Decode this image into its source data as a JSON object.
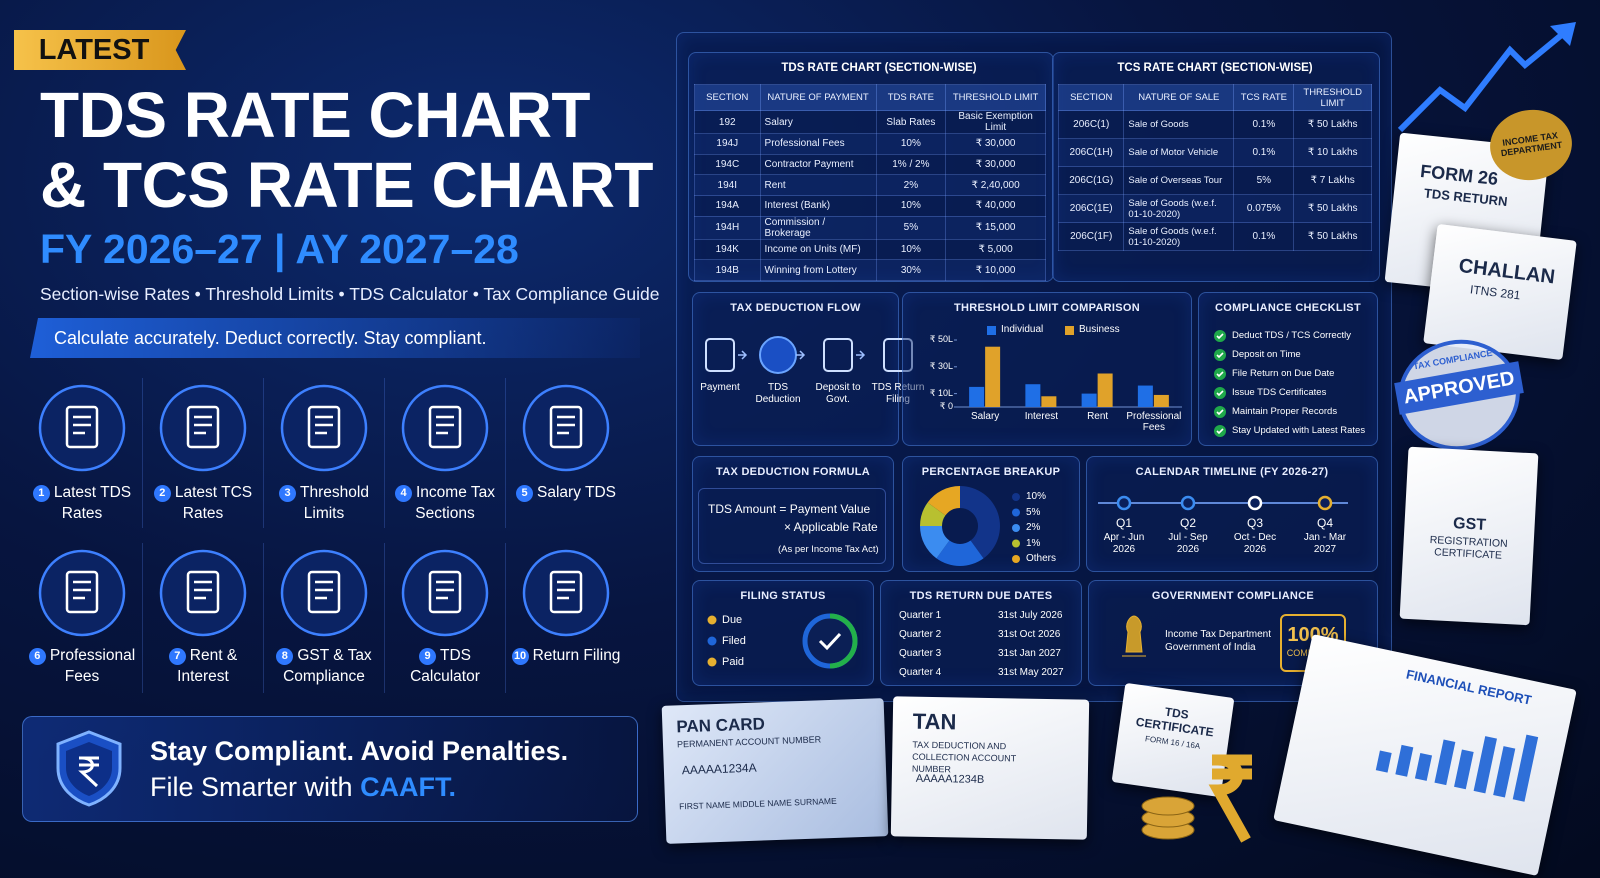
{
  "header": {
    "badge": "LATEST",
    "title_line1": "TDS RATE CHART",
    "title_line2": "& TCS RATE CHART",
    "year": "FY 2026–27 | AY 2027–28",
    "subtitle": "Section-wise Rates • Threshold Limits • TDS Calculator • Tax Compliance Guide",
    "tagline": "Calculate accurately. Deduct correctly. Stay compliant."
  },
  "features": [
    {
      "number": 1,
      "label": "Latest TDS Rates"
    },
    {
      "number": 2,
      "label": "Latest TCS Rates"
    },
    {
      "number": 3,
      "label": "Threshold Limits"
    },
    {
      "number": 4,
      "label": "Income Tax Sections"
    },
    {
      "number": 5,
      "label": "Salary TDS"
    },
    {
      "number": 6,
      "label": "Professional Fees"
    },
    {
      "number": 7,
      "label": "Rent & Interest"
    },
    {
      "number": 8,
      "label": "GST & Tax Compliance"
    },
    {
      "number": 9,
      "label": "TDS Calculator"
    },
    {
      "number": 10,
      "label": "Return Filing"
    }
  ],
  "footer": {
    "line1": "Stay Compliant. Avoid Penalties.",
    "line2": "File Smarter with",
    "brand": "CAAFT."
  },
  "tds_table": {
    "title": "TDS RATE CHART (SECTION-WISE)",
    "columns": [
      "SECTION",
      "NATURE OF PAYMENT",
      "TDS RATE",
      "THRESHOLD LIMIT"
    ],
    "rows": [
      [
        "192",
        "Salary",
        "Slab Rates",
        "Basic Exemption Limit"
      ],
      [
        "194J",
        "Professional Fees",
        "10%",
        "₹ 30,000"
      ],
      [
        "194C",
        "Contractor Payment",
        "1% / 2%",
        "₹ 30,000"
      ],
      [
        "194I",
        "Rent",
        "2%",
        "₹ 2,40,000"
      ],
      [
        "194A",
        "Interest (Bank)",
        "10%",
        "₹ 40,000"
      ],
      [
        "194H",
        "Commission / Brokerage",
        "5%",
        "₹ 15,000"
      ],
      [
        "194K",
        "Income on Units (MF)",
        "10%",
        "₹ 5,000"
      ],
      [
        "194B",
        "Winning from Lottery",
        "30%",
        "₹ 10,000"
      ]
    ]
  },
  "tcs_table": {
    "title": "TCS RATE CHART (SECTION-WISE)",
    "columns": [
      "SECTION",
      "NATURE OF SALE",
      "TCS RATE",
      "THRESHOLD LIMIT"
    ],
    "rows": [
      [
        "206C(1)",
        "Sale of Goods",
        "0.1%",
        "₹ 50 Lakhs"
      ],
      [
        "206C(1H)",
        "Sale of Motor Vehicle",
        "0.1%",
        "₹ 10 Lakhs"
      ],
      [
        "206C(1G)",
        "Sale of Overseas Tour",
        "5%",
        "₹ 7 Lakhs"
      ],
      [
        "206C(1E)",
        "Sale of Goods (w.e.f. 01-10-2020)",
        "0.075%",
        "₹ 50 Lakhs"
      ],
      [
        "206C(1F)",
        "Sale of Goods (w.e.f. 01-10-2020)",
        "0.1%",
        "₹ 50 Lakhs"
      ]
    ]
  },
  "flow": {
    "title": "TAX DEDUCTION FLOW",
    "steps": [
      "Payment",
      "TDS Deduction",
      "Deposit to Govt.",
      "TDS Return Filing"
    ]
  },
  "chart_data": [
    {
      "type": "bar",
      "title": "THRESHOLD LIMIT COMPARISON",
      "categories": [
        "Salary",
        "Interest",
        "Rent",
        "Professional Fees"
      ],
      "series": [
        {
          "name": "Individual",
          "color": "#1f6fe6",
          "values": [
            15,
            17,
            10,
            16
          ]
        },
        {
          "name": "Business",
          "color": "#e0a22a",
          "values": [
            45,
            8,
            25,
            9
          ]
        }
      ],
      "ylim": [
        0,
        50
      ],
      "yticks": [
        {
          "value": 50,
          "label": "₹ 50L"
        },
        {
          "value": 30,
          "label": "₹ 30L"
        },
        {
          "value": 10,
          "label": "₹ 10L"
        },
        {
          "value": 0,
          "label": "₹ 0"
        }
      ]
    },
    {
      "type": "pie",
      "title": "PERCENTAGE BREAKUP",
      "categories": [
        "10%",
        "5%",
        "2%",
        "1%",
        "Others"
      ],
      "values": [
        40,
        20,
        15,
        10,
        15
      ],
      "colors": [
        "#12348a",
        "#1f66d9",
        "#3b8cf0",
        "#b8c030",
        "#e6a723"
      ]
    }
  ],
  "checklist": {
    "title": "COMPLIANCE CHECKLIST",
    "items": [
      "Deduct TDS / TCS Correctly",
      "Deposit on Time",
      "File Return on Due Date",
      "Issue TDS Certificates",
      "Maintain Proper Records",
      "Stay Updated with Latest Rates"
    ]
  },
  "formula": {
    "title": "TAX DEDUCTION FORMULA",
    "line1": "TDS Amount = Payment Value",
    "line2": "× Applicable Rate",
    "note": "(As per Income Tax Act)"
  },
  "calendar": {
    "title": "CALENDAR TIMELINE (FY 2026-27)",
    "quarters": [
      {
        "label": "Q1",
        "range": "Apr - Jun",
        "year": "2026"
      },
      {
        "label": "Q2",
        "range": "Jul - Sep",
        "year": "2026"
      },
      {
        "label": "Q3",
        "range": "Oct - Dec",
        "year": "2026"
      },
      {
        "label": "Q4",
        "range": "Jan - Mar",
        "year": "2027"
      }
    ]
  },
  "filing_status": {
    "title": "FILING STATUS",
    "items": [
      "Due",
      "Filed",
      "Paid"
    ]
  },
  "due_dates": {
    "title": "TDS RETURN DUE DATES",
    "rows": [
      [
        "Quarter 1",
        "31st July 2026"
      ],
      [
        "Quarter 2",
        "31st Oct 2026"
      ],
      [
        "Quarter 3",
        "31st Jan 2027"
      ],
      [
        "Quarter 4",
        "31st May 2027"
      ]
    ]
  },
  "government": {
    "title": "GOVERNMENT COMPLIANCE",
    "dept": "Income Tax Department",
    "govt": "Government of India",
    "badge_value": "100%",
    "badge_label": "COMPLIANT"
  },
  "documents": {
    "form": "FORM 26",
    "form_sub": "TDS RETURN",
    "challan": "CHALLAN",
    "challan_no": "ITNS 281",
    "seal": "INCOME TAX DEPARTMENT",
    "stamp": "APPROVED",
    "stamp_ring": "TAX COMPLIANCE",
    "gst": "GST",
    "gst_sub": "REGISTRATION CERTIFICATE",
    "pan_title": "PAN CARD",
    "pan_sub": "PERMANENT ACCOUNT NUMBER",
    "pan_no": "AAAAA1234A",
    "pan_name": "FIRST NAME MIDDLE NAME SURNAME",
    "tan_title": "TAN",
    "tan_sub": "TAX DEDUCTION AND COLLECTION ACCOUNT NUMBER",
    "tan_no": "AAAAA1234B",
    "cert_title": "TDS CERTIFICATE",
    "cert_sub": "FORM 16 / 16A",
    "report": "FINANCIAL REPORT"
  }
}
